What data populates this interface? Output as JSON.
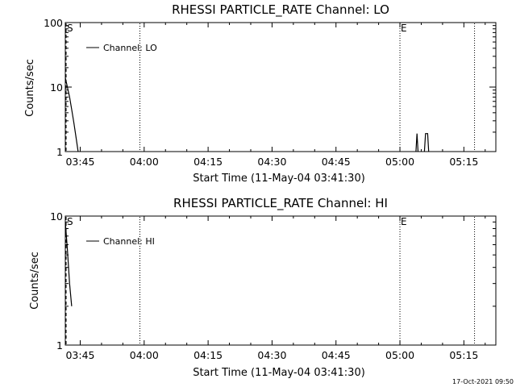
{
  "chart_data": [
    {
      "type": "line",
      "title": "RHESSI PARTICLE_RATE Channel: LO",
      "xlabel": "Start Time (11-May-04 03:41:30)",
      "ylabel": "Counts/sec",
      "y_scale": "log",
      "ylim": [
        1,
        100
      ],
      "yticks": [
        "1",
        "10",
        "100"
      ],
      "xlim": [
        "03:41:30",
        "05:22:30"
      ],
      "xticks": [
        "03:45",
        "04:00",
        "04:15",
        "04:30",
        "04:45",
        "05:00",
        "05:15"
      ],
      "legend": {
        "label": "Channel: LO",
        "placement": "top-left"
      },
      "markers": [
        {
          "label": "S",
          "time": "03:41:30",
          "style": "dashed"
        },
        {
          "label": "",
          "time": "03:59:00",
          "style": "dotted"
        },
        {
          "label": "E",
          "time": "05:00:00",
          "style": "dotted"
        },
        {
          "label": "",
          "time": "05:17:30",
          "style": "dotted"
        }
      ],
      "series": [
        {
          "name": "Channel: LO",
          "segments": [
            {
              "x": [
                "03:41:30",
                "03:42:00",
                "03:42:30",
                "03:43:00",
                "03:43:30",
                "03:44:00",
                "03:44:30"
              ],
              "y": [
                14,
                10,
                7,
                4.5,
                2.8,
                1.7,
                1.0
              ]
            },
            {
              "x": [
                "05:03:45",
                "05:04:00",
                "05:04:15"
              ],
              "y": [
                1.0,
                1.9,
                1.0
              ]
            },
            {
              "x": [
                "05:05:45",
                "05:06:00",
                "05:06:30",
                "05:06:45"
              ],
              "y": [
                1.0,
                1.9,
                1.9,
                1.0
              ]
            }
          ]
        }
      ]
    },
    {
      "type": "line",
      "title": "RHESSI PARTICLE_RATE Channel: HI",
      "xlabel": "Start Time (11-May-04 03:41:30)",
      "ylabel": "Counts/sec",
      "y_scale": "log",
      "ylim": [
        1,
        10
      ],
      "yticks": [
        "1",
        "10"
      ],
      "xlim": [
        "03:41:30",
        "05:22:30"
      ],
      "xticks": [
        "03:45",
        "04:00",
        "04:15",
        "04:30",
        "04:45",
        "05:00",
        "05:15"
      ],
      "legend": {
        "label": "Channel: HI",
        "placement": "top-left"
      },
      "markers": [
        {
          "label": "S",
          "time": "03:41:30",
          "style": "dashed"
        },
        {
          "label": "",
          "time": "03:59:00",
          "style": "dotted"
        },
        {
          "label": "E",
          "time": "05:00:00",
          "style": "dotted"
        },
        {
          "label": "",
          "time": "05:17:30",
          "style": "dotted"
        }
      ],
      "series": [
        {
          "name": "Channel: HI",
          "segments": [
            {
              "x": [
                "03:41:30",
                "03:42:00",
                "03:42:30",
                "03:43:00"
              ],
              "y": [
                9,
                5.5,
                3,
                2.0
              ]
            }
          ]
        }
      ]
    }
  ],
  "footer": {
    "timestamp": "17-Oct-2021 09:50"
  }
}
